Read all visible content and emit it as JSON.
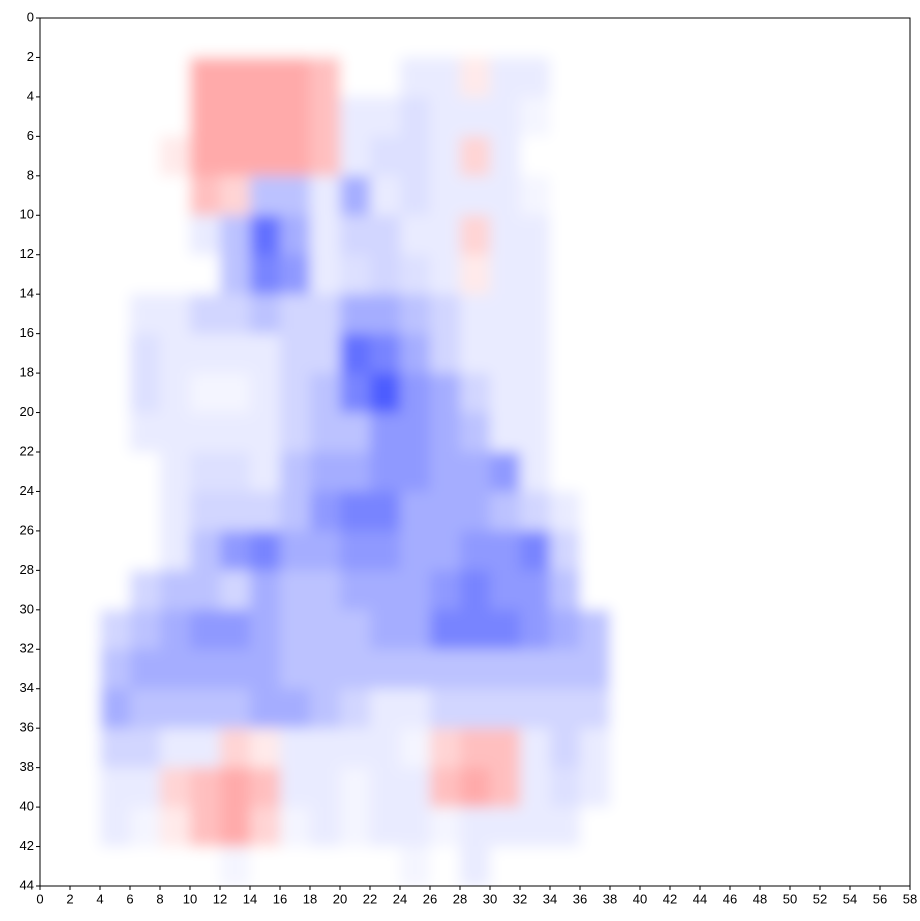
{
  "chart_data": {
    "type": "heatmap",
    "x_edges": [
      0,
      2,
      4,
      6,
      8,
      10,
      12,
      14,
      16,
      18,
      20,
      22,
      24,
      26,
      28,
      30,
      32,
      34,
      36,
      38,
      40,
      42,
      44,
      46,
      48,
      50,
      52,
      54,
      56,
      58
    ],
    "y_edges": [
      0,
      2,
      4,
      6,
      8,
      10,
      12,
      14,
      16,
      18,
      20,
      22,
      24,
      26,
      28,
      30,
      32,
      34,
      36,
      38,
      40,
      42,
      44
    ],
    "z": [
      [
        0,
        0,
        0,
        0,
        0,
        0,
        0,
        0,
        0,
        0,
        0,
        0,
        0,
        0,
        0,
        0,
        0,
        0,
        0,
        0,
        0,
        0,
        0,
        0,
        0,
        0,
        0,
        0,
        0
      ],
      [
        0,
        0,
        0,
        0,
        0,
        -0.4,
        -0.4,
        -0.4,
        -0.4,
        -0.3,
        0,
        0,
        0.1,
        0.1,
        -0.1,
        0.1,
        0.1,
        0,
        0,
        0,
        0,
        0,
        0,
        0,
        0,
        0,
        0,
        0,
        0
      ],
      [
        0,
        0,
        0,
        0,
        0,
        -0.4,
        -0.4,
        -0.4,
        -0.4,
        -0.3,
        0.1,
        0.1,
        0.15,
        0.1,
        0.1,
        0.1,
        0.05,
        0,
        0,
        0,
        0,
        0,
        0,
        0,
        0,
        0,
        0,
        0,
        0
      ],
      [
        0,
        0,
        0,
        0,
        -0.1,
        -0.4,
        -0.4,
        -0.4,
        -0.4,
        -0.3,
        0.1,
        0.15,
        0.15,
        0.1,
        -0.2,
        0.1,
        0,
        0,
        0,
        0,
        0,
        0,
        0,
        0,
        0,
        0,
        0,
        0,
        0
      ],
      [
        0,
        0,
        0,
        0,
        0,
        -0.3,
        -0.2,
        0.3,
        0.3,
        0.1,
        0.4,
        0.1,
        0.15,
        0.1,
        0.1,
        0.1,
        0.05,
        0,
        0,
        0,
        0,
        0,
        0,
        0,
        0,
        0,
        0,
        0,
        0
      ],
      [
        0,
        0,
        0,
        0,
        0,
        0.1,
        0.3,
        0.7,
        0.4,
        0.1,
        0.2,
        0.2,
        0.1,
        0.1,
        -0.2,
        0.1,
        0.1,
        0,
        0,
        0,
        0,
        0,
        0,
        0,
        0,
        0,
        0,
        0,
        0
      ],
      [
        0,
        0,
        0,
        0,
        0,
        0,
        0.3,
        0.6,
        0.5,
        0.1,
        0.15,
        0.2,
        0.15,
        0.1,
        -0.1,
        0.1,
        0.1,
        0,
        0,
        0,
        0,
        0,
        0,
        0,
        0,
        0,
        0,
        0,
        0
      ],
      [
        0,
        0,
        0,
        0.1,
        0.1,
        0.2,
        0.2,
        0.3,
        0.2,
        0.2,
        0.4,
        0.4,
        0.3,
        0.2,
        0.1,
        0.1,
        0.1,
        0,
        0,
        0,
        0,
        0,
        0,
        0,
        0,
        0,
        0,
        0,
        0
      ],
      [
        0,
        0,
        0,
        0.15,
        0.1,
        0.1,
        0.1,
        0.1,
        0.2,
        0.2,
        0.7,
        0.6,
        0.4,
        0.2,
        0.1,
        0.1,
        0.1,
        0,
        0,
        0,
        0,
        0,
        0,
        0,
        0,
        0,
        0,
        0,
        0
      ],
      [
        0,
        0,
        0,
        0.15,
        0.1,
        0.05,
        0.05,
        0.1,
        0.2,
        0.3,
        0.6,
        0.8,
        0.5,
        0.4,
        0.2,
        0.1,
        0.1,
        0,
        0,
        0,
        0,
        0,
        0,
        0,
        0,
        0,
        0,
        0,
        0
      ],
      [
        0,
        0,
        0,
        0.1,
        0.1,
        0.1,
        0.1,
        0.1,
        0.2,
        0.3,
        0.3,
        0.5,
        0.5,
        0.4,
        0.3,
        0.1,
        0.1,
        0,
        0,
        0,
        0,
        0,
        0,
        0,
        0,
        0,
        0,
        0,
        0
      ],
      [
        0,
        0,
        0,
        0,
        0.1,
        0.15,
        0.15,
        0.1,
        0.3,
        0.4,
        0.4,
        0.5,
        0.5,
        0.4,
        0.4,
        0.5,
        0.1,
        0,
        0,
        0,
        0,
        0,
        0,
        0,
        0,
        0,
        0,
        0,
        0
      ],
      [
        0,
        0,
        0,
        0,
        0.1,
        0.2,
        0.2,
        0.2,
        0.3,
        0.5,
        0.6,
        0.6,
        0.4,
        0.4,
        0.4,
        0.3,
        0.2,
        0.1,
        0,
        0,
        0,
        0,
        0,
        0,
        0,
        0,
        0,
        0,
        0
      ],
      [
        0,
        0,
        0,
        0,
        0.1,
        0.3,
        0.5,
        0.6,
        0.4,
        0.4,
        0.5,
        0.5,
        0.4,
        0.4,
        0.5,
        0.5,
        0.6,
        0.2,
        0,
        0,
        0,
        0,
        0,
        0,
        0,
        0,
        0,
        0,
        0
      ],
      [
        0,
        0,
        0,
        0.2,
        0.3,
        0.3,
        0.2,
        0.4,
        0.3,
        0.3,
        0.4,
        0.4,
        0.4,
        0.5,
        0.6,
        0.5,
        0.5,
        0.3,
        0,
        0,
        0,
        0,
        0,
        0,
        0,
        0,
        0,
        0,
        0
      ],
      [
        0,
        0,
        0.2,
        0.3,
        0.4,
        0.5,
        0.5,
        0.4,
        0.3,
        0.3,
        0.3,
        0.4,
        0.4,
        0.6,
        0.6,
        0.6,
        0.5,
        0.4,
        0.3,
        0,
        0,
        0,
        0,
        0,
        0,
        0,
        0,
        0,
        0
      ],
      [
        0,
        0,
        0.3,
        0.4,
        0.4,
        0.4,
        0.4,
        0.4,
        0.3,
        0.3,
        0.3,
        0.3,
        0.3,
        0.3,
        0.3,
        0.3,
        0.3,
        0.3,
        0.3,
        0,
        0,
        0,
        0,
        0,
        0,
        0,
        0,
        0,
        0
      ],
      [
        0,
        0,
        0.4,
        0.3,
        0.3,
        0.3,
        0.3,
        0.4,
        0.4,
        0.3,
        0.2,
        0.1,
        0.1,
        0.2,
        0.2,
        0.2,
        0.2,
        0.2,
        0.2,
        0,
        0,
        0,
        0,
        0,
        0,
        0,
        0,
        0,
        0
      ],
      [
        0,
        0,
        0.2,
        0.2,
        0.1,
        0.1,
        -0.2,
        -0.1,
        0.1,
        0.1,
        0.1,
        0.1,
        0.05,
        -0.2,
        -0.3,
        -0.3,
        0.1,
        0.2,
        0.1,
        0,
        0,
        0,
        0,
        0,
        0,
        0,
        0,
        0,
        0
      ],
      [
        0,
        0,
        0.1,
        0.1,
        -0.2,
        -0.3,
        -0.4,
        -0.3,
        0.1,
        0.1,
        0.05,
        0.1,
        0.1,
        -0.3,
        -0.4,
        -0.3,
        0.1,
        0.15,
        0.1,
        0,
        0,
        0,
        0,
        0,
        0,
        0,
        0,
        0,
        0
      ],
      [
        0,
        0,
        0.1,
        0.05,
        -0.1,
        -0.3,
        -0.4,
        -0.2,
        0.05,
        0.1,
        0.05,
        0.1,
        0.1,
        0.05,
        0.1,
        0.1,
        0.1,
        0.1,
        0,
        0,
        0,
        0,
        0,
        0,
        0,
        0,
        0,
        0,
        0
      ],
      [
        0,
        0,
        0,
        0,
        0,
        0,
        0.05,
        0,
        0,
        0,
        0,
        0,
        0.05,
        0,
        0.1,
        0,
        0,
        0,
        0,
        0,
        0,
        0,
        0,
        0,
        0,
        0,
        0,
        0,
        0
      ]
    ],
    "zlim": [
      -1,
      1
    ],
    "colors": {
      "negative": "#ff2a2a",
      "zero": "#ffffff",
      "positive": "#1e32ff"
    },
    "xlim": [
      0,
      58
    ],
    "ylim": [
      0,
      44
    ],
    "y_inverted": true,
    "xticks": [
      0,
      2,
      4,
      6,
      8,
      10,
      12,
      14,
      16,
      18,
      20,
      22,
      24,
      26,
      28,
      30,
      32,
      34,
      36,
      38,
      40,
      42,
      44,
      46,
      48,
      50,
      52,
      54,
      56,
      58
    ],
    "yticks": [
      0,
      2,
      4,
      6,
      8,
      10,
      12,
      14,
      16,
      18,
      20,
      22,
      24,
      26,
      28,
      30,
      32,
      34,
      36,
      38,
      40,
      42,
      44
    ]
  }
}
